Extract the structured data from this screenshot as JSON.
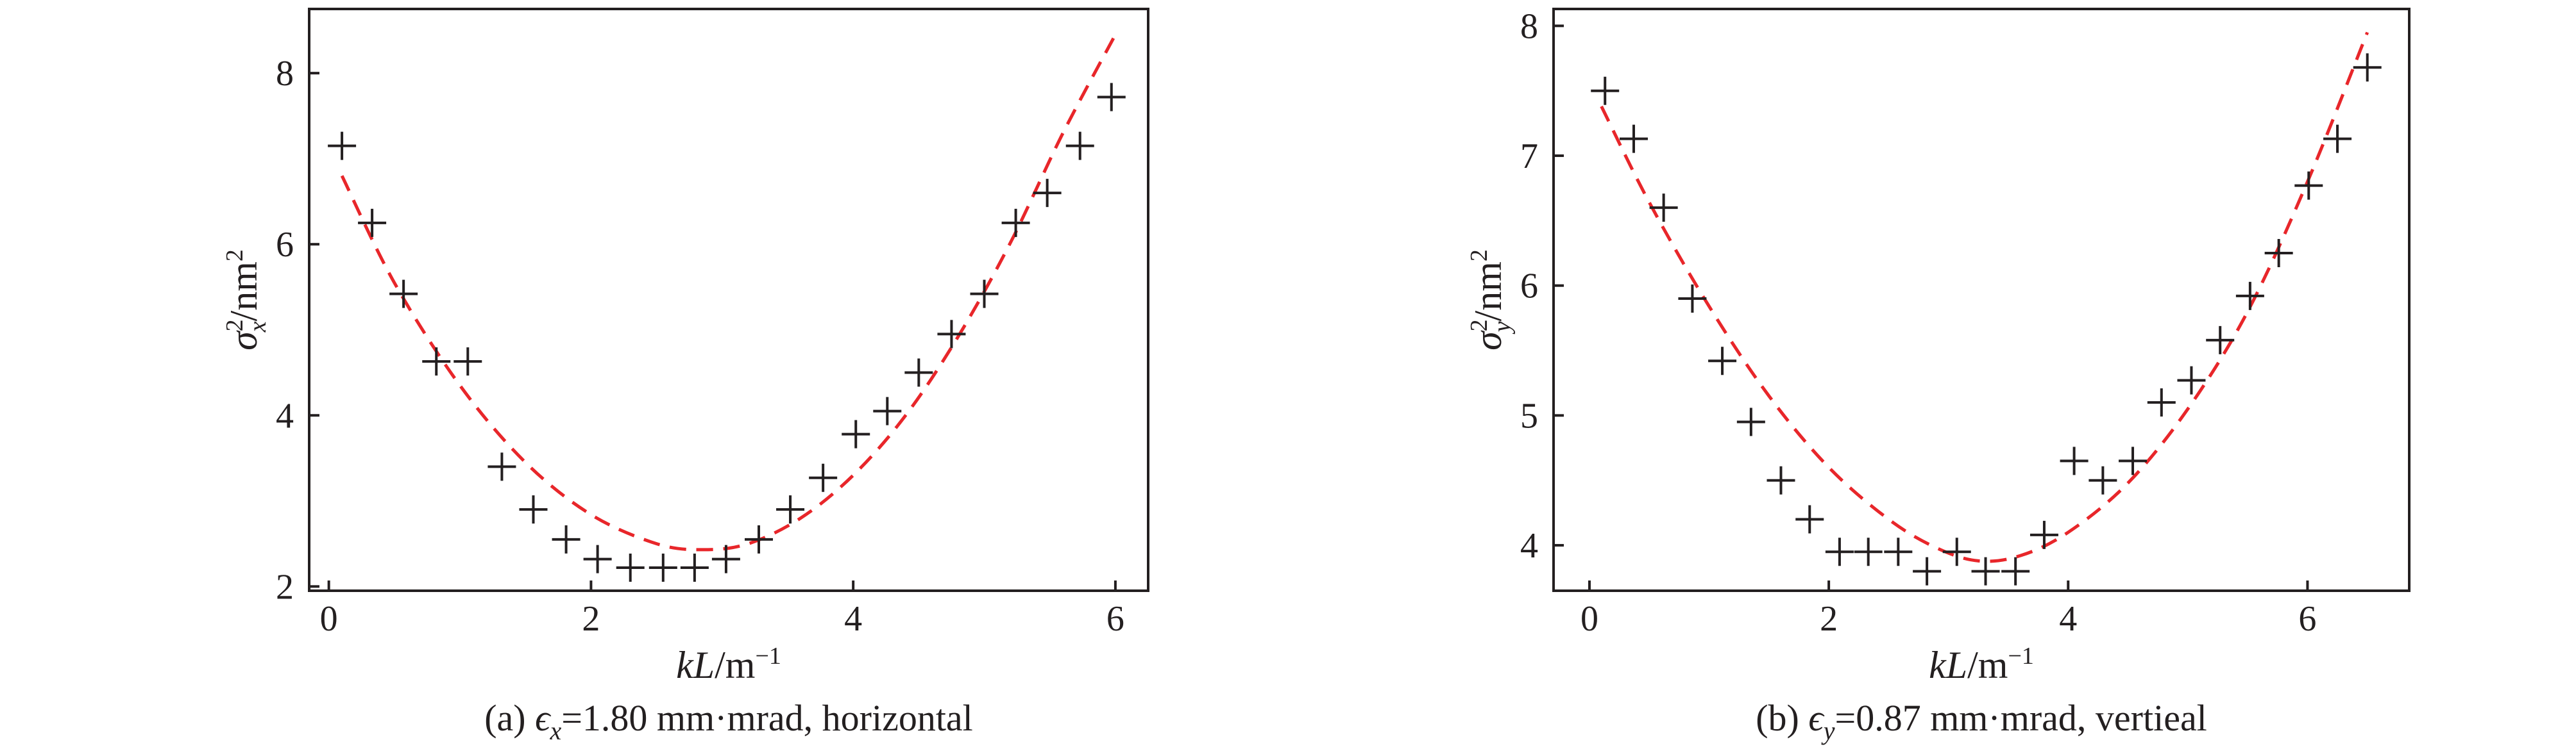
{
  "colors": {
    "axis": "#231f20",
    "marker": "#231f20",
    "fit": "#e8262a"
  },
  "chart_data": [
    {
      "type": "scatter",
      "panel": "a",
      "caption_prefix": "(a) ",
      "caption_eps": "ϵ",
      "caption_sub": "x",
      "caption_rest": "=1.80 mm·mrad, horizontal",
      "xlabel_var": "kL",
      "xlabel_unit": "/m",
      "xlabel_exp": "−1",
      "ylabel_sigma": "σ",
      "ylabel_sub": "x",
      "ylabel_sup": "2",
      "ylabel_unit": "/nm",
      "ylabel_unit_sup": "2",
      "xlim": [
        -0.15,
        6.25
      ],
      "ylim": [
        1.95,
        8.75
      ],
      "xticks": [
        0,
        2,
        4,
        6
      ],
      "yticks": [
        2,
        4,
        6,
        8
      ],
      "marker": "+",
      "points": {
        "x": [
          0.1,
          0.33,
          0.57,
          0.82,
          1.06,
          1.32,
          1.56,
          1.81,
          2.05,
          2.3,
          2.55,
          2.79,
          3.03,
          3.28,
          3.52,
          3.77,
          4.02,
          4.26,
          4.5,
          4.75,
          5.0,
          5.24,
          5.48,
          5.73,
          5.97
        ],
        "y": [
          7.15,
          6.25,
          5.42,
          4.63,
          4.63,
          3.4,
          2.9,
          2.55,
          2.32,
          2.22,
          2.22,
          2.22,
          2.32,
          2.55,
          2.9,
          3.27,
          3.78,
          4.05,
          4.5,
          4.95,
          5.42,
          6.25,
          6.6,
          7.15,
          7.72
        ]
      },
      "fit": {
        "x": [
          0.1,
          0.5,
          1.0,
          1.5,
          2.0,
          2.5,
          2.85,
          3.2,
          3.6,
          4.0,
          4.4,
          4.8,
          5.2,
          5.6,
          6.0
        ],
        "y": [
          6.8,
          5.55,
          4.35,
          3.45,
          2.84,
          2.5,
          2.43,
          2.5,
          2.8,
          3.3,
          4.0,
          4.92,
          6.02,
          7.3,
          8.45
        ]
      }
    },
    {
      "type": "scatter",
      "panel": "b",
      "caption_prefix": "(b) ",
      "caption_eps": "ϵ",
      "caption_sub": "y",
      "caption_rest": "=0.87 mm·mrad, vertieal",
      "xlabel_var": "kL",
      "xlabel_unit": "/m",
      "xlabel_exp": "−1",
      "ylabel_sigma": "σ",
      "ylabel_sub": "y",
      "ylabel_sup": "2",
      "ylabel_unit": "/nm",
      "ylabel_unit_sup": "2",
      "xlim": [
        -0.3,
        6.85
      ],
      "ylim": [
        3.65,
        8.13
      ],
      "xticks": [
        0,
        2,
        4,
        6
      ],
      "yticks": [
        4,
        5,
        6,
        7,
        8
      ],
      "marker": "+",
      "points": {
        "x": [
          0.13,
          0.37,
          0.62,
          0.86,
          1.11,
          1.35,
          1.6,
          1.84,
          2.09,
          2.33,
          2.58,
          2.82,
          3.07,
          3.31,
          3.56,
          3.8,
          4.05,
          4.29,
          4.54,
          4.78,
          5.03,
          5.27,
          5.52,
          5.76,
          6.01,
          6.25,
          6.5
        ],
        "y": [
          7.5,
          7.13,
          6.6,
          5.9,
          5.42,
          4.95,
          4.5,
          4.2,
          3.95,
          3.95,
          3.95,
          3.8,
          3.95,
          3.8,
          3.8,
          4.08,
          4.65,
          4.5,
          4.65,
          5.1,
          5.27,
          5.58,
          5.92,
          6.25,
          6.77,
          7.13,
          7.68
        ]
      },
      "fit": {
        "x": [
          0.1,
          0.5,
          1.0,
          1.5,
          2.0,
          2.5,
          2.9,
          3.25,
          3.6,
          4.0,
          4.5,
          5.0,
          5.5,
          6.0,
          6.5
        ],
        "y": [
          7.38,
          6.64,
          5.84,
          5.15,
          4.6,
          4.2,
          3.98,
          3.88,
          3.92,
          4.1,
          4.48,
          5.05,
          5.8,
          6.8,
          7.95
        ]
      }
    }
  ]
}
